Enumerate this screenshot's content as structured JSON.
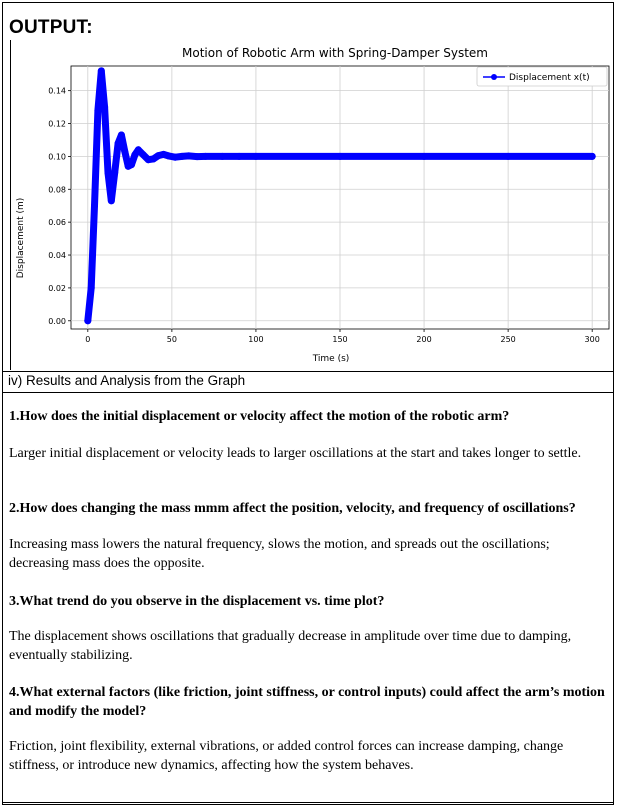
{
  "output_label": "OUTPUT:",
  "chart_data": {
    "type": "line",
    "title": "Motion of Robotic Arm with Spring-Damper System",
    "xlabel": "Time (s)",
    "ylabel": "Displacement (m)",
    "xlim": [
      -10,
      310
    ],
    "ylim": [
      -0.005,
      0.155
    ],
    "xticks": [
      0,
      50,
      100,
      150,
      200,
      250,
      300
    ],
    "yticks": [
      0.0,
      0.02,
      0.04,
      0.06,
      0.08,
      0.1,
      0.12,
      0.14
    ],
    "ytick_labels": [
      "0.00",
      "0.02",
      "0.04",
      "0.06",
      "0.08",
      "0.10",
      "0.12",
      "0.14"
    ],
    "grid": true,
    "legend_position": "top-right",
    "series": [
      {
        "name": "Displacement x(t)",
        "color": "#0000ff",
        "marker": "o",
        "x": [
          0,
          2,
          4,
          6,
          8,
          10,
          12,
          14,
          16,
          18,
          20,
          22,
          24,
          26,
          28,
          30,
          33,
          36,
          39,
          42,
          45,
          48,
          52,
          56,
          60,
          65,
          70,
          80,
          90,
          100,
          150,
          200,
          250,
          300
        ],
        "y": [
          0.0,
          0.02,
          0.07,
          0.128,
          0.152,
          0.13,
          0.09,
          0.073,
          0.09,
          0.108,
          0.113,
          0.103,
          0.094,
          0.095,
          0.101,
          0.104,
          0.101,
          0.098,
          0.0985,
          0.1005,
          0.1012,
          0.1003,
          0.0995,
          0.1,
          0.1003,
          0.0999,
          0.1,
          0.1,
          0.1,
          0.1,
          0.1,
          0.1,
          0.1,
          0.1
        ]
      }
    ]
  },
  "section_title": "iv) Results and Analysis from the Graph",
  "qa": [
    {
      "q": "1.How does the initial displacement or velocity affect the motion of the robotic arm?",
      "a": "Larger initial displacement or velocity leads to larger oscillations at the start and takes longer to settle."
    },
    {
      "q": "2.How does changing the mass mmm affect the position, velocity, and frequency of oscillations?",
      "a": "Increasing mass lowers the natural frequency, slows the motion, and spreads out the oscillations; decreasing mass does the opposite."
    },
    {
      "q": "3.What trend do you observe in the displacement vs. time plot?",
      "a": "The displacement shows oscillations that gradually decrease in amplitude over time due to damping, eventually stabilizing."
    },
    {
      "q": "4.What external factors (like friction, joint stiffness, or control inputs) could affect the arm’s motion and modify the model?",
      "a": "Friction, joint flexibility, external vibrations, or added control forces can increase damping, change stiffness, or introduce new dynamics, affecting how the system behaves."
    }
  ]
}
